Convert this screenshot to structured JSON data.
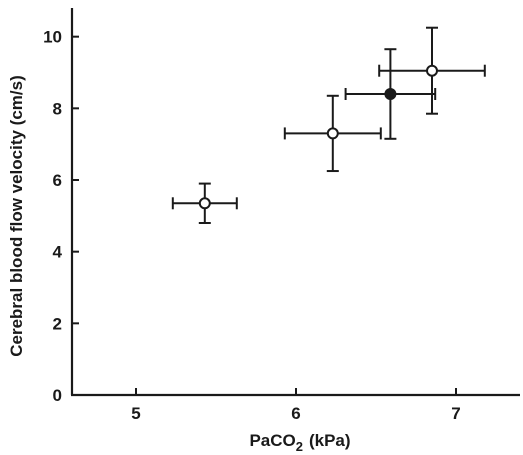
{
  "chart_data": {
    "type": "scatter",
    "title": "",
    "xlabel_main": "PaCO",
    "xlabel_sub": "2",
    "xlabel_unit": "(kPa)",
    "ylabel": "Cerebral blood flow velocity (cm/s)",
    "xlim": [
      4.6,
      7.4
    ],
    "ylim": [
      0,
      10.8
    ],
    "xticks": [
      5,
      6,
      7
    ],
    "yticks": [
      0,
      2,
      4,
      6,
      8,
      10
    ],
    "grid": false,
    "legend": "none",
    "series": [
      {
        "marker": "open-circle",
        "points": [
          {
            "x": 5.43,
            "y": 5.35,
            "x_err": 0.2,
            "y_err": 0.55
          },
          {
            "x": 6.23,
            "y": 7.3,
            "x_err": 0.3,
            "y_err": 1.05
          },
          {
            "x": 6.85,
            "y": 9.05,
            "x_err": 0.33,
            "y_err": 1.2
          }
        ]
      },
      {
        "marker": "filled-circle",
        "points": [
          {
            "x": 6.59,
            "y": 8.4,
            "x_err": 0.28,
            "y_err": 1.25
          }
        ]
      }
    ],
    "colors": {
      "ink": "#1a1a1a",
      "background": "#ffffff"
    }
  }
}
